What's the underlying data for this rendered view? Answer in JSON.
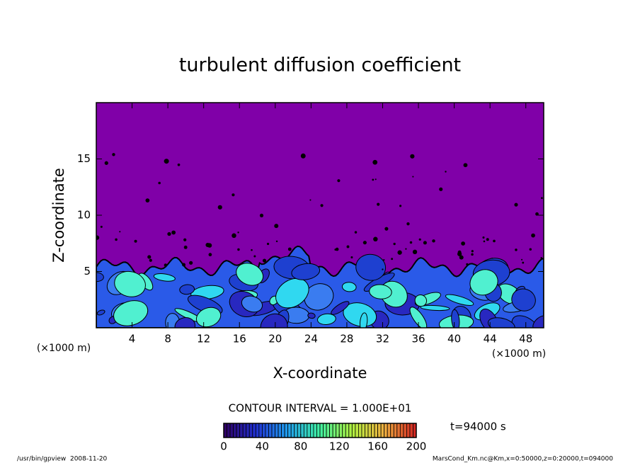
{
  "chart_data": {
    "type": "contour",
    "title": "turbulent diffusion coefficient",
    "x_label": "X-coordinate",
    "y_label": "Z-coordinate",
    "x_unit_label": "(×1000 m)",
    "y_unit_label": "(×1000 m)",
    "xlim": [
      0,
      50
    ],
    "ylim": [
      0,
      20
    ],
    "xticks": [
      4,
      8,
      12,
      16,
      20,
      24,
      28,
      32,
      36,
      40,
      44,
      48
    ],
    "yticks": [
      5,
      10,
      15
    ],
    "background_color": "#8000a8",
    "contour_interval_label": "CONTOUR INTERVAL = 1.000E+01",
    "time_label": "t=94000 s",
    "colorbar": {
      "lim": [
        0,
        200
      ],
      "ticks": [
        0,
        40,
        80,
        120,
        160,
        200
      ],
      "colors": [
        "#300060",
        "#2030d0",
        "#20a0f0",
        "#40f0a0",
        "#b0f040",
        "#f0b040",
        "#d02020"
      ]
    }
  },
  "footer": {
    "left": "/usr/bin/gpview  2008-11-20",
    "right": "MarsCond_Km.nc@Km,x=0:50000,z=0:20000,t=094000"
  }
}
